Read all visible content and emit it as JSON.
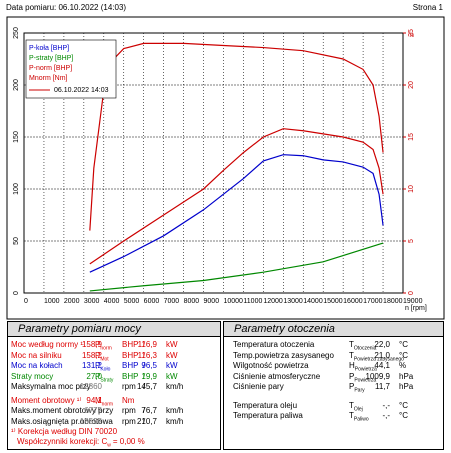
{
  "header": {
    "date": "Data pomiaru: 06.10.2022 (14:03)",
    "page": "Strona 1"
  },
  "chart_data": {
    "type": "line",
    "legend_title": "06.10.2022 14:03",
    "x_label": "n [rpm]",
    "y2_label": "n",
    "xlim": [
      0,
      19000
    ],
    "xticks": [
      0,
      1000,
      2000,
      3000,
      4000,
      5000,
      6000,
      7000,
      8000,
      9000,
      10000,
      11000,
      12000,
      13000,
      14000,
      15000,
      16000,
      17000,
      18000,
      19000
    ],
    "ylim": [
      0,
      250
    ],
    "yticks": [
      0,
      50,
      100,
      150,
      200,
      250
    ],
    "y2lim": [
      0,
      25
    ],
    "y2ticks": [
      0,
      5,
      10,
      15,
      20,
      25
    ],
    "y2color": "#cc0000",
    "grid": true,
    "legend": "upper left",
    "series": [
      {
        "name": "P-koła [BHP]",
        "color": "#0000cc",
        "x": [
          3300,
          5000,
          7000,
          9000,
          10000,
          11000,
          12000,
          13000,
          14000,
          15000,
          16000,
          17000,
          17500,
          17800,
          18000
        ],
        "values": [
          20,
          35,
          55,
          80,
          95,
          110,
          127,
          133,
          132,
          128,
          126,
          121,
          115,
          95,
          65
        ]
      },
      {
        "name": "P-straty [BHP]",
        "color": "#008800",
        "x": [
          3300,
          6000,
          9000,
          12000,
          15000,
          18000
        ],
        "values": [
          2,
          7,
          12,
          20,
          30,
          48
        ]
      },
      {
        "name": "P-norm [BHP]",
        "color": "#cc0000",
        "x": [
          3300,
          5000,
          7000,
          9000,
          10000,
          11000,
          12000,
          13000,
          14000,
          15000,
          16000,
          17000,
          17500,
          17800,
          18000
        ],
        "values": [
          28,
          50,
          75,
          100,
          118,
          135,
          150,
          158,
          156,
          153,
          150,
          145,
          138,
          120,
          95
        ]
      },
      {
        "name": "Mnorm [Nm]",
        "color": "#cc0000",
        "x": [
          3300,
          3500,
          4000,
          4500,
          5000,
          6000,
          8000,
          10000,
          12000,
          14000,
          16000,
          17000,
          17500,
          17800,
          18000
        ],
        "values": [
          60,
          120,
          195,
          225,
          235,
          240,
          240,
          238,
          236,
          233,
          225,
          215,
          200,
          170,
          135
        ]
      }
    ]
  },
  "power": {
    "title": "Parametry pomiaru mocy",
    "rows": [
      {
        "label": "Moc według normy ¹⁾",
        "sym": "P",
        "sub": "norm",
        "v1": "158,9",
        "u1": "BHP",
        "sep": "/",
        "v2": "116,9",
        "u2": "kW",
        "color": "#dd0000"
      },
      {
        "label": "Moc na silniku",
        "sym": "P",
        "sub": "Mot",
        "v1": "158,2",
        "u1": "BHP",
        "sep": "/",
        "v2": "116,3",
        "u2": "kW",
        "color": "#dd0000"
      },
      {
        "label": "Moc na kołach",
        "sym": "P",
        "sub": "Koło",
        "v1": "131,2",
        "u1": "BHP",
        "sep": "/",
        "v2": "96,5",
        "u2": "kW",
        "color": "#0000cc"
      },
      {
        "label": "Straty mocy",
        "sym": "P",
        "sub": "Straty",
        "v1": "27,0",
        "u1": "BHP",
        "sep": "/",
        "v2": "19,9",
        "u2": "kW",
        "color": "#008800"
      },
      {
        "label": "Maksymalna moc przy",
        "v1": "12860",
        "u1": "rpm",
        "sep": "/",
        "v2": "145,7",
        "u2": "km/h",
        "color": "#000000"
      },
      {
        "label": "Moment obrotowy ¹⁾",
        "sym": "M",
        "sub": "norm",
        "v1": "94,1",
        "u1": "Nm",
        "color": "#dd0000"
      },
      {
        "label": "Maks.moment obrotowy przy",
        "v1": "6775",
        "u1": "rpm",
        "sep": "/",
        "v2": "76,7",
        "u2": "km/h",
        "color": "#000000"
      },
      {
        "label": "Maks.osiągnięta pr.obrotowa",
        "v1": "18595",
        "u1": "rpm",
        "sep": "/",
        "v2": "210,7",
        "u2": "km/h",
        "color": "#000000"
      }
    ],
    "note": "¹⁾ Korekcja według DIN 70020",
    "coef_label": "Współczynniki korekcji: C",
    "coef_sub": "w",
    "coef_value": "= 0,00 %"
  },
  "ambient": {
    "title": "Parametry otoczenia",
    "rows": [
      {
        "label": "Temperatura otoczenia",
        "sym": "T",
        "sub": "Otoczenia",
        "v1": "22,0",
        "u1": "°C"
      },
      {
        "label": "Temp.powietrza zasysanego",
        "sym": "T",
        "sub": "Powietrza zasysanego",
        "v1": "21,0",
        "u1": "°C"
      },
      {
        "label": "Wilgotność powietrza",
        "sym": "H",
        "sub": "Powietrza",
        "v1": "44,1",
        "u1": "%"
      },
      {
        "label": "Ciśnienie atmosferyczne",
        "sym": "P",
        "sub": "Powietrza",
        "v1": "1009,9",
        "u1": "hPa"
      },
      {
        "label": "Ciśnienie pary",
        "sym": "P",
        "sub": "Pary",
        "v1": "11,7",
        "u1": "hPa"
      },
      {
        "label": "Temperatura oleju",
        "sym": "T",
        "sub": "Olej",
        "v1": "-,-",
        "u1": "°C"
      },
      {
        "label": "Temperatura paliwa",
        "sym": "T",
        "sub": "Paliwo",
        "v1": "-,-",
        "u1": "°C"
      }
    ]
  }
}
